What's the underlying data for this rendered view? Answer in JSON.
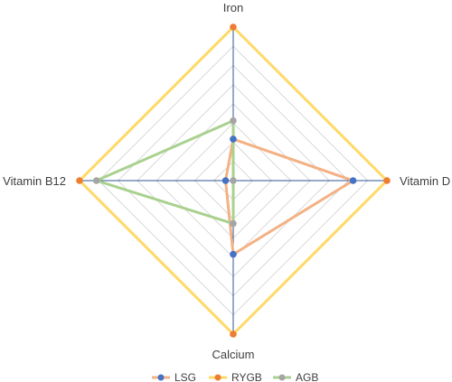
{
  "chart_data": {
    "type": "radar",
    "axes": [
      "Iron",
      "Vitamin D",
      "Calcium",
      "Vitamin B12"
    ],
    "range": [
      0,
      100
    ],
    "grid_levels": 8,
    "grid": true,
    "legend_position": "bottom",
    "series": [
      {
        "name": "LSG",
        "values": [
          27,
          78,
          48,
          5
        ],
        "marker_color": "#4472C4",
        "line_color": "#F4B183"
      },
      {
        "name": "RYGB",
        "values": [
          100,
          100,
          100,
          100
        ],
        "marker_color": "#ED7D31",
        "line_color": "#FFD966"
      },
      {
        "name": "AGB",
        "values": [
          39,
          0,
          28,
          89
        ],
        "marker_color": "#A5A5A5",
        "line_color": "#A9D18E"
      }
    ],
    "colors": {
      "axis": "#2F5597",
      "gridline": "#D9D9D9"
    }
  }
}
